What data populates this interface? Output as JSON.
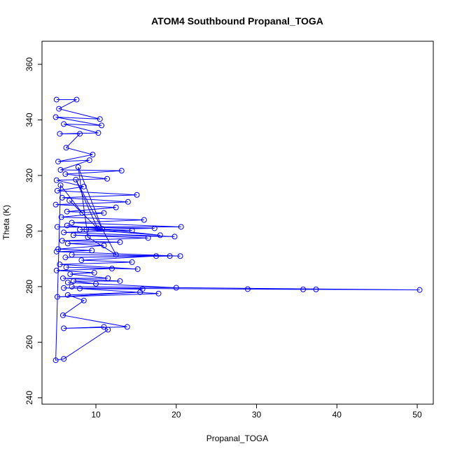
{
  "chart_data": {
    "type": "line-points",
    "title": "ATOM4 Southbound Propanal_TOGA",
    "x_label": "Propanal_TOGA",
    "y_label": "Theta (K)",
    "color": "#0000ff",
    "xlim": [
      3.29,
      52.0
    ],
    "ylim": [
      237.7,
      368.3
    ],
    "xticks": [
      10,
      20,
      30,
      40,
      50
    ],
    "yticks": [
      240,
      260,
      280,
      300,
      320,
      340,
      360
    ],
    "x": [
      5.1,
      7.6,
      5.4,
      10.5,
      5,
      10.7,
      6,
      10.3,
      5.5,
      8,
      6.3,
      9.6,
      5.3,
      9.2,
      5.6,
      13.2,
      6.2,
      11.4,
      5.1,
      8.5,
      5.2,
      15.1,
      5.8,
      14,
      5,
      12.5,
      6.4,
      11,
      5.7,
      16,
      7,
      20.6,
      5.2,
      17.3,
      8,
      14.5,
      6,
      19.8,
      7.2,
      16.5,
      5.8,
      13,
      6.5,
      11,
      5.3,
      9.5,
      5.1,
      20.5,
      7,
      19.2,
      6.2,
      17.5,
      8.2,
      14.5,
      5.5,
      15.2,
      6.3,
      12,
      5.1,
      9.8,
      6.8,
      11.5,
      5.9,
      13,
      7.2,
      10,
      6.5,
      20,
      7,
      50.3,
      37.4,
      35.8,
      28.9,
      6,
      15.8,
      8,
      17.8,
      5.2,
      15.5,
      6.5,
      8.5,
      5.9,
      13.9,
      6,
      11,
      11.5,
      6,
      5,
      5.6,
      8.3,
      6.7,
      10.2,
      7.5,
      12.5,
      9,
      7.8,
      10.8,
      6.4,
      18,
      8.8
    ],
    "y": [
      347.3,
      347.3,
      344,
      340.3,
      341,
      338,
      338.5,
      335.3,
      335,
      335,
      330,
      327.5,
      325,
      325.5,
      322,
      321.7,
      320.5,
      318.8,
      318.3,
      316,
      314.5,
      313,
      312,
      310.5,
      309.5,
      308.5,
      307,
      306.5,
      305,
      304,
      303,
      301.5,
      301.5,
      301,
      300.5,
      300.2,
      299.5,
      298,
      298.5,
      297.5,
      296.5,
      296,
      295.5,
      294.8,
      293.5,
      293,
      292.6,
      291,
      291.5,
      291,
      290.5,
      291,
      289.5,
      288.8,
      288,
      286.3,
      287,
      286.5,
      285.8,
      285,
      284.5,
      283,
      283,
      282,
      282,
      281,
      281.5,
      279.6,
      280,
      278.8,
      279,
      279,
      279.1,
      279.5,
      279.1,
      279.3,
      277.5,
      276.3,
      278,
      277,
      275,
      269.7,
      265.5,
      265,
      265.5,
      264.5,
      254,
      253.5,
      316.5,
      306.5,
      311,
      301,
      318.5,
      291.5,
      297.8,
      323,
      300.8,
      302,
      298.5,
      300.5
    ]
  }
}
